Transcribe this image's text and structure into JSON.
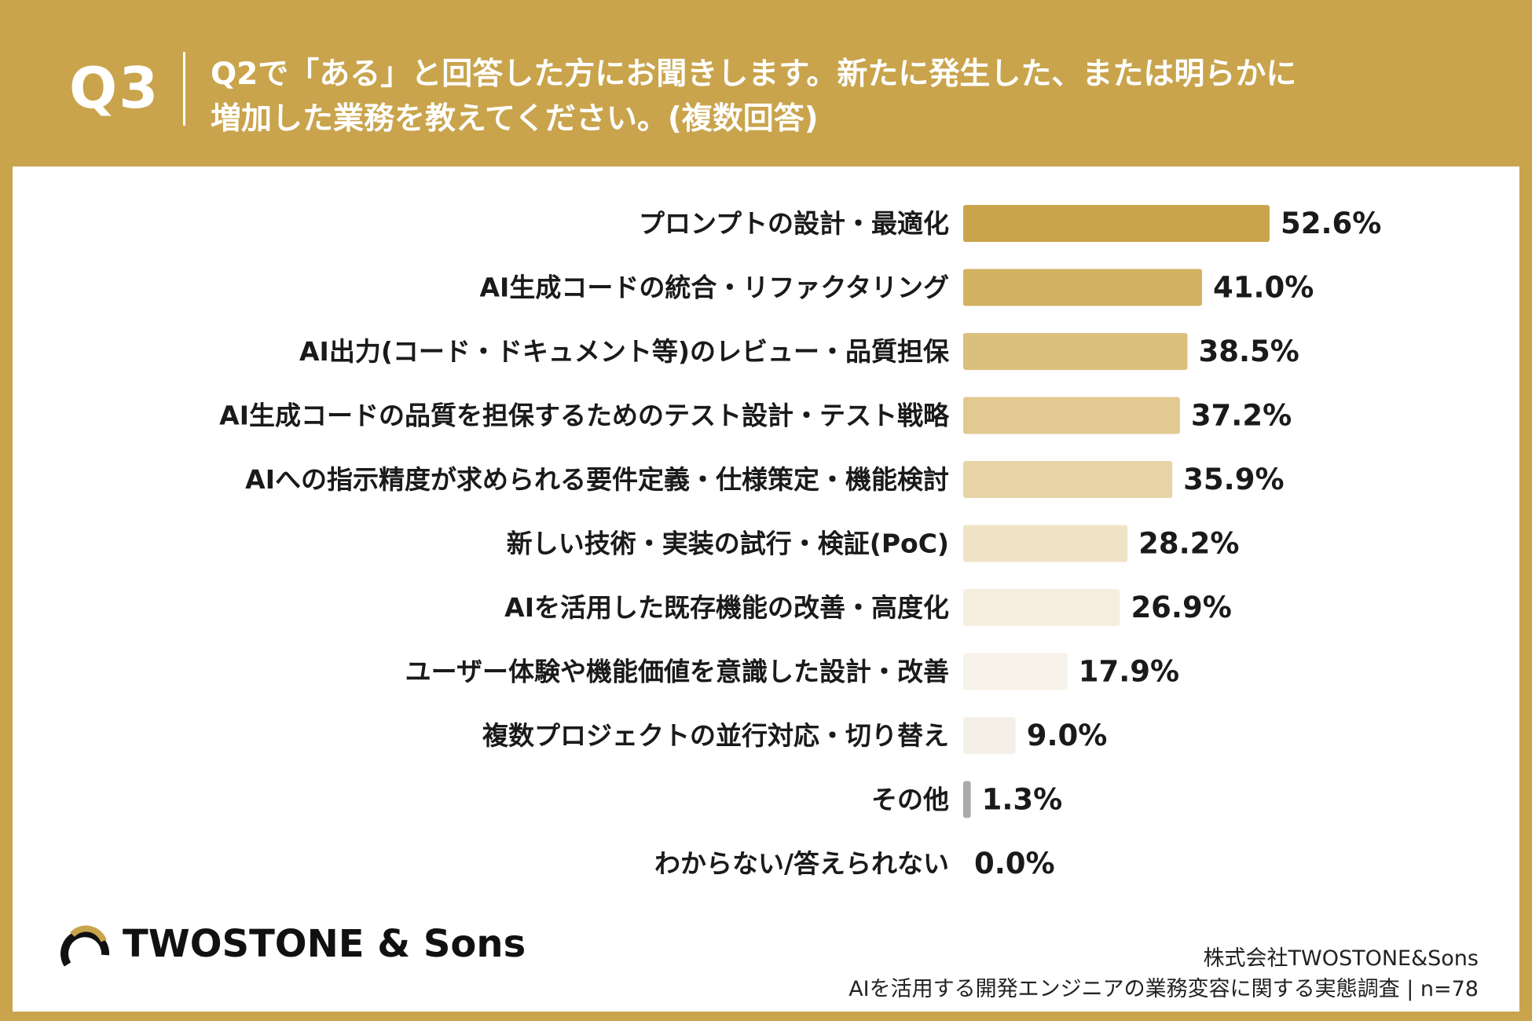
{
  "header": {
    "question_number": "Q3",
    "question_line1": "Q2で「ある」と回答した方にお聞きします。新たに発生した、または明らかに",
    "question_line2": "増加した業務を教えてください。(複数回答)"
  },
  "chart_data": {
    "type": "bar",
    "orientation": "horizontal",
    "categories": [
      "プロンプトの設計・最適化",
      "AI生成コードの統合・リファクタリング",
      "AI出力(コード・ドキュメント等)のレビュー・品質担保",
      "AI生成コードの品質を担保するためのテスト設計・テスト戦略",
      "AIへの指示精度が求められる要件定義・仕様策定・機能検討",
      "新しい技術・実装の試行・検証(PoC)",
      "AIを活用した既存機能の改善・高度化",
      "ユーザー体験や機能価値を意識した設計・改善",
      "複数プロジェクトの並行対応・切り替え",
      "その他",
      "わからない/答えられない"
    ],
    "values": [
      52.6,
      41.0,
      38.5,
      37.2,
      35.9,
      28.2,
      26.9,
      17.9,
      9.0,
      1.3,
      0.0
    ],
    "value_labels": [
      "52.6%",
      "41.0%",
      "38.5%",
      "37.2%",
      "35.9%",
      "28.2%",
      "26.9%",
      "17.9%",
      "9.0%",
      "1.3%",
      "0.0%"
    ],
    "bar_colors": [
      "#c9a44c",
      "#d3b262",
      "#dbbf7c",
      "#e1c991",
      "#e7d3a6",
      "#efe3c6",
      "#f5eedf",
      "#f8f3ea",
      "#f5f0e7",
      "#aaaaaa",
      "#ffffff"
    ],
    "xlim": [
      0,
      100
    ],
    "title": "",
    "xlabel": "",
    "ylabel": ""
  },
  "branding": {
    "logo_text": "TWOSTONE & Sons"
  },
  "footer": {
    "company": "株式会社TWOSTONE&Sons",
    "survey": "AIを活用する開発エンジニアの業務変容に関する実態調査 | n=78"
  },
  "colors": {
    "background": "#c9a44c",
    "panel": "#ffffff",
    "text": "#1a1a1a"
  }
}
